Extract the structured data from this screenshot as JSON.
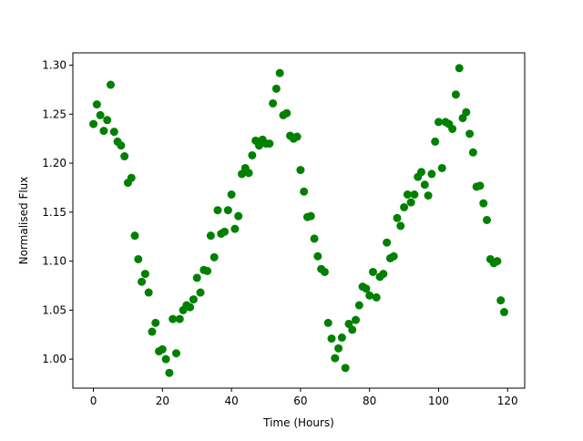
{
  "chart_data": {
    "type": "scatter",
    "xlabel": "Time (Hours)",
    "ylabel": "Normalised Flux",
    "color": "#008000",
    "x": [
      0,
      1,
      2,
      3,
      4,
      5,
      6,
      7,
      8,
      9,
      10,
      11,
      12,
      13,
      14,
      15,
      16,
      17,
      18,
      19,
      20,
      21,
      22,
      23,
      24,
      25,
      26,
      27,
      28,
      29,
      30,
      31,
      32,
      33,
      34,
      35,
      36,
      37,
      38,
      39,
      40,
      41,
      42,
      43,
      44,
      45,
      46,
      47,
      48,
      49,
      50,
      51,
      52,
      53,
      54,
      55,
      56,
      57,
      58,
      59,
      60,
      61,
      62,
      63,
      64,
      65,
      66,
      67,
      68,
      69,
      70,
      71,
      72,
      73,
      74,
      75,
      76,
      77,
      78,
      79,
      80,
      81,
      82,
      83,
      84,
      85,
      86,
      87,
      88,
      89,
      90,
      91,
      92,
      93,
      94,
      95,
      96,
      97,
      98,
      99,
      100,
      101,
      102,
      103,
      104,
      105,
      106,
      107,
      108,
      109,
      110,
      111,
      112,
      113,
      114,
      115,
      116,
      117,
      118,
      119
    ],
    "values": [
      1.24,
      1.26,
      1.249,
      1.233,
      1.244,
      1.28,
      1.232,
      1.222,
      1.218,
      1.207,
      1.18,
      1.185,
      1.126,
      1.102,
      1.079,
      1.087,
      1.068,
      1.028,
      1.037,
      1.008,
      1.01,
      1.0,
      0.986,
      1.041,
      1.006,
      1.041,
      1.05,
      1.055,
      1.053,
      1.061,
      1.083,
      1.068,
      1.091,
      1.09,
      1.126,
      1.104,
      1.152,
      1.128,
      1.13,
      1.152,
      1.168,
      1.133,
      1.146,
      1.189,
      1.195,
      1.19,
      1.208,
      1.223,
      1.218,
      1.224,
      1.22,
      1.22,
      1.261,
      1.276,
      1.292,
      1.249,
      1.251,
      1.228,
      1.225,
      1.227,
      1.193,
      1.171,
      1.145,
      1.146,
      1.123,
      1.105,
      1.092,
      1.089,
      1.037,
      1.021,
      1.001,
      1.011,
      1.022,
      0.991,
      1.036,
      1.03,
      1.04,
      1.055,
      1.074,
      1.072,
      1.065,
      1.089,
      1.063,
      1.084,
      1.087,
      1.119,
      1.103,
      1.105,
      1.144,
      1.136,
      1.155,
      1.168,
      1.16,
      1.168,
      1.186,
      1.191,
      1.178,
      1.167,
      1.189,
      1.222,
      1.242,
      1.195,
      1.242,
      1.24,
      1.235,
      1.27,
      1.297,
      1.246,
      1.252,
      1.23,
      1.211,
      1.176,
      1.177,
      1.159,
      1.142,
      1.102,
      1.098,
      1.1,
      1.06,
      1.048
    ],
    "xlim": [
      -5.95,
      124.95
    ],
    "ylim": [
      0.9704,
      1.3126
    ],
    "xticks": [
      0,
      20,
      40,
      60,
      80,
      100,
      120
    ],
    "yticks": [
      {
        "value": 1.0,
        "label": "1.00"
      },
      {
        "value": 1.05,
        "label": "1.05"
      },
      {
        "value": 1.1,
        "label": "1.10"
      },
      {
        "value": 1.15,
        "label": "1.15"
      },
      {
        "value": 1.2,
        "label": "1.20"
      },
      {
        "value": 1.25,
        "label": "1.25"
      },
      {
        "value": 1.3,
        "label": "1.30"
      }
    ]
  }
}
